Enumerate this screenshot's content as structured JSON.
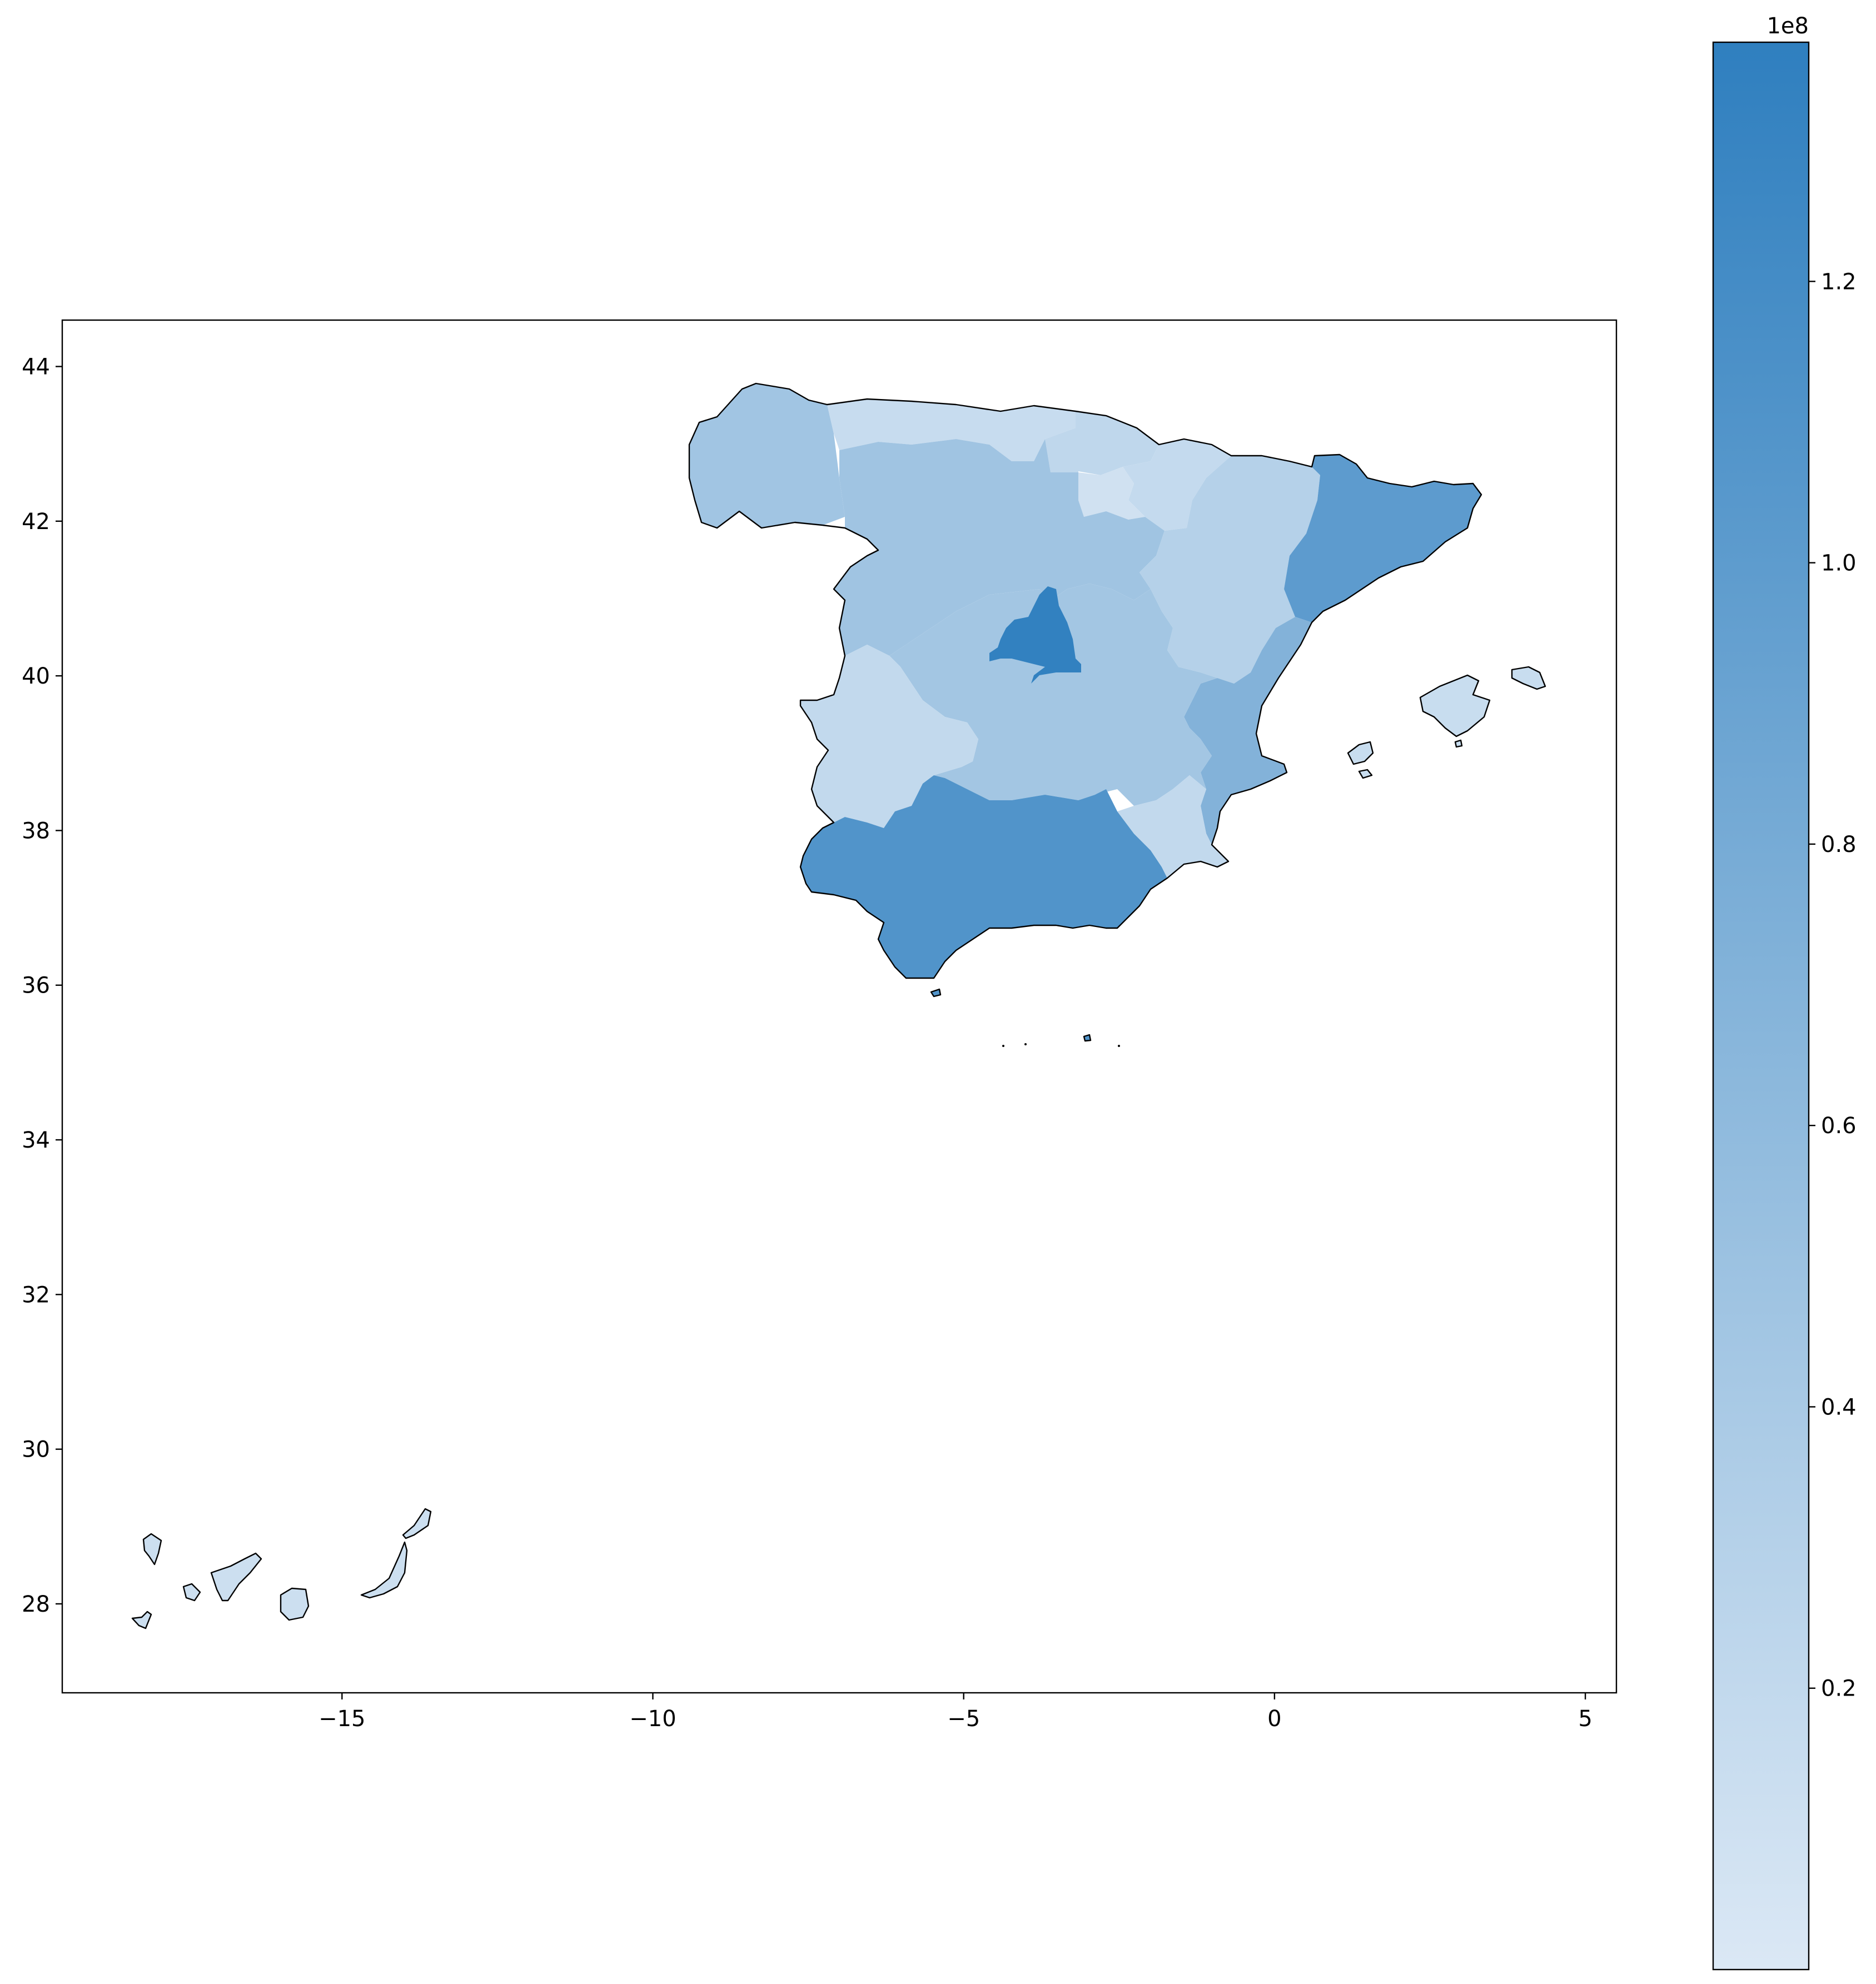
{
  "chart_data": {
    "type": "choropleth",
    "x_axis": {
      "range": [
        -19.5,
        5.5
      ],
      "ticks": [
        -15,
        -10,
        -5,
        0,
        5
      ],
      "tick_labels": [
        "−15",
        "−10",
        "−5",
        "0",
        "5"
      ]
    },
    "y_axis": {
      "range": [
        26.85,
        44.6
      ],
      "ticks": [
        28,
        30,
        32,
        34,
        36,
        38,
        40,
        42,
        44
      ],
      "tick_labels": [
        "28",
        "30",
        "32",
        "34",
        "36",
        "38",
        "40",
        "42",
        "44"
      ]
    },
    "colorbar": {
      "range": [
        0,
        137000000
      ],
      "offset_label": "1e8",
      "ticks": [
        20000000,
        40000000,
        60000000,
        80000000,
        100000000,
        120000000
      ],
      "tick_labels": [
        "0.2",
        "0.4",
        "0.6",
        "0.8",
        "1.0",
        "1.2"
      ],
      "color_low": "#dbe8f5",
      "color_high": "#2f7fbf"
    },
    "regions": [
      {
        "id": "madrid",
        "value": 135000000
      },
      {
        "id": "cataluna",
        "value": 100000000
      },
      {
        "id": "andalucia",
        "value": 110000000
      },
      {
        "id": "valencia",
        "value": 70000000
      },
      {
        "id": "castilla-leon",
        "value": 47000000
      },
      {
        "id": "castilla-la-mancha",
        "value": 45000000
      },
      {
        "id": "galicia",
        "value": 46000000
      },
      {
        "id": "aragon",
        "value": 30000000
      },
      {
        "id": "extremadura",
        "value": 20000000
      },
      {
        "id": "murcia",
        "value": 20000000
      },
      {
        "id": "asturias-cantabria",
        "value": 16000000
      },
      {
        "id": "pais-vasco",
        "value": 22000000
      },
      {
        "id": "navarra",
        "value": 18000000
      },
      {
        "id": "la-rioja",
        "value": 9000000
      },
      {
        "id": "baleares",
        "value": 15000000
      },
      {
        "id": "canarias",
        "value": 12000000
      }
    ]
  }
}
